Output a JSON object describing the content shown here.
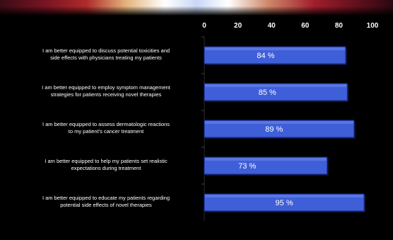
{
  "chart_data": {
    "type": "bar",
    "orientation": "horizontal",
    "categories": [
      [
        "I am better equipped to discuss potential toxicities and",
        "side effects with physicians treating my patients"
      ],
      [
        "I am better equipped to employ symptom management",
        "strategies for patients receiving novel therapies"
      ],
      [
        "I am better equipped to assess dermatologic reactions",
        "to my patient's cancer treatment"
      ],
      [
        "I am better equipped to help my patients set realistic",
        "expectations during treatment"
      ],
      [
        "I am better equipped to educate my patients regarding",
        "potential side effects of novel therapies"
      ]
    ],
    "values": [
      84,
      85,
      89,
      73,
      95
    ],
    "value_suffix": "%",
    "xlim": [
      0,
      100
    ],
    "xticks": [
      0,
      20,
      40,
      60,
      80,
      100
    ],
    "tick_position": "top",
    "bar_color": "#3f5fd9",
    "bar_edge_color": "#1a2f8a",
    "background_color": "#000000",
    "text_color": "#ffffff",
    "grid": false,
    "legend": "none"
  }
}
